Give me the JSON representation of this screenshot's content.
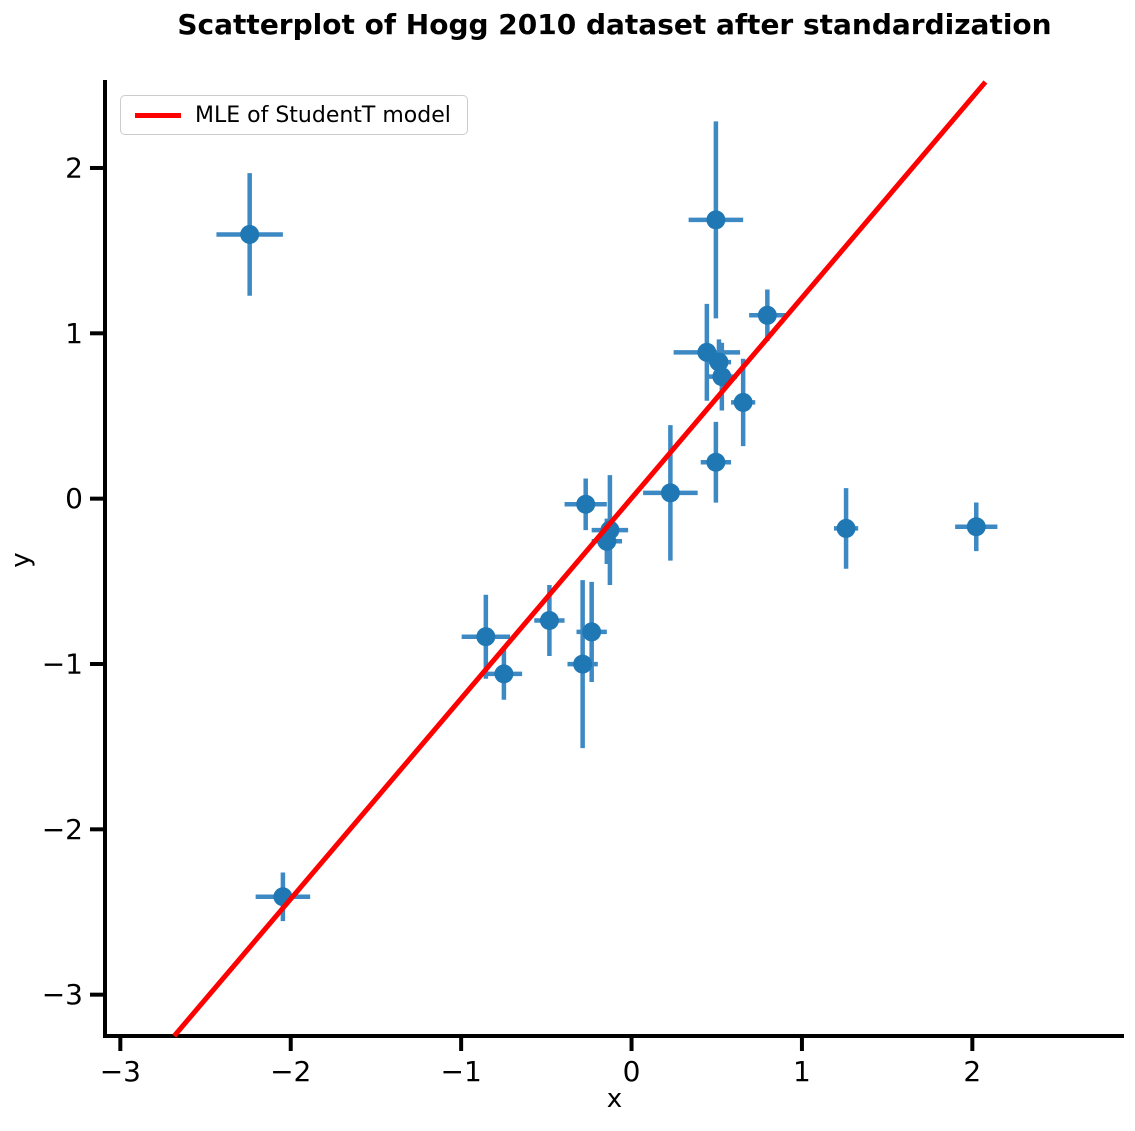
{
  "title": "Scatterplot of Hogg 2010 dataset after standardization",
  "legend": {
    "label": "MLE of StudentT model"
  },
  "chart_data": {
    "type": "scatter",
    "title": "Scatterplot of Hogg 2010 dataset after standardization",
    "xlabel": "x",
    "ylabel": "y",
    "xlim": [
      -3.09,
      2.89
    ],
    "ylim": [
      -3.25,
      2.52
    ],
    "x_ticks": [
      -3,
      -2,
      -1,
      0,
      1,
      2
    ],
    "x_tick_labels": [
      "−3",
      "−2",
      "−1",
      "0",
      "1",
      "2"
    ],
    "y_ticks": [
      2,
      1,
      0,
      -1,
      -2,
      -3
    ],
    "y_tick_labels": [
      "2",
      "1",
      "0",
      "−1",
      "−2",
      "−3"
    ],
    "grid": false,
    "legend_position": "upper left",
    "colors": {
      "marker": "#1f77b4",
      "errorbar": "#3d89c4",
      "line": "#ff0000",
      "axis": "#000000"
    },
    "points": [
      {
        "x": 0.495,
        "y": 1.686,
        "xerr": 0.16,
        "yerr": 0.596
      },
      {
        "x": 1.259,
        "y": -0.18,
        "xerr": 0.071,
        "yerr": 0.244
      },
      {
        "x": -2.241,
        "y": 1.598,
        "xerr": 0.195,
        "yerr": 0.371
      },
      {
        "x": 2.023,
        "y": -0.17,
        "xerr": 0.124,
        "yerr": 0.147
      },
      {
        "x": 0.53,
        "y": 0.738,
        "xerr": 0.089,
        "yerr": 0.205
      },
      {
        "x": -2.046,
        "y": -2.408,
        "xerr": 0.16,
        "yerr": 0.147
      },
      {
        "x": 0.655,
        "y": 0.582,
        "xerr": 0.071,
        "yerr": 0.264
      },
      {
        "x": 0.513,
        "y": 0.826,
        "xerr": 0.071,
        "yerr": 0.137
      },
      {
        "x": 0.442,
        "y": 0.885,
        "xerr": 0.195,
        "yerr": 0.293
      },
      {
        "x": -0.269,
        "y": -0.034,
        "xerr": 0.124,
        "yerr": 0.156
      },
      {
        "x": -0.145,
        "y": -0.258,
        "xerr": 0.089,
        "yerr": 0.137
      },
      {
        "x": 0.495,
        "y": 0.22,
        "xerr": 0.089,
        "yerr": 0.244
      },
      {
        "x": -0.287,
        "y": -1.001,
        "xerr": 0.089,
        "yerr": 0.508
      },
      {
        "x": -0.749,
        "y": -1.06,
        "xerr": 0.107,
        "yerr": 0.156
      },
      {
        "x": -0.127,
        "y": -0.19,
        "xerr": 0.107,
        "yerr": 0.332
      },
      {
        "x": -0.234,
        "y": -0.806,
        "xerr": 0.089,
        "yerr": 0.303
      },
      {
        "x": 0.228,
        "y": 0.035,
        "xerr": 0.16,
        "yerr": 0.41
      },
      {
        "x": -0.855,
        "y": -0.835,
        "xerr": 0.142,
        "yerr": 0.254
      },
      {
        "x": 0.797,
        "y": 1.109,
        "xerr": 0.107,
        "yerr": 0.156
      },
      {
        "x": -0.482,
        "y": -0.737,
        "xerr": 0.089,
        "yerr": 0.215
      }
    ],
    "mle_line": {
      "label": "MLE of StudentT model",
      "slope": 1.212,
      "intercept": 0.003
    }
  }
}
